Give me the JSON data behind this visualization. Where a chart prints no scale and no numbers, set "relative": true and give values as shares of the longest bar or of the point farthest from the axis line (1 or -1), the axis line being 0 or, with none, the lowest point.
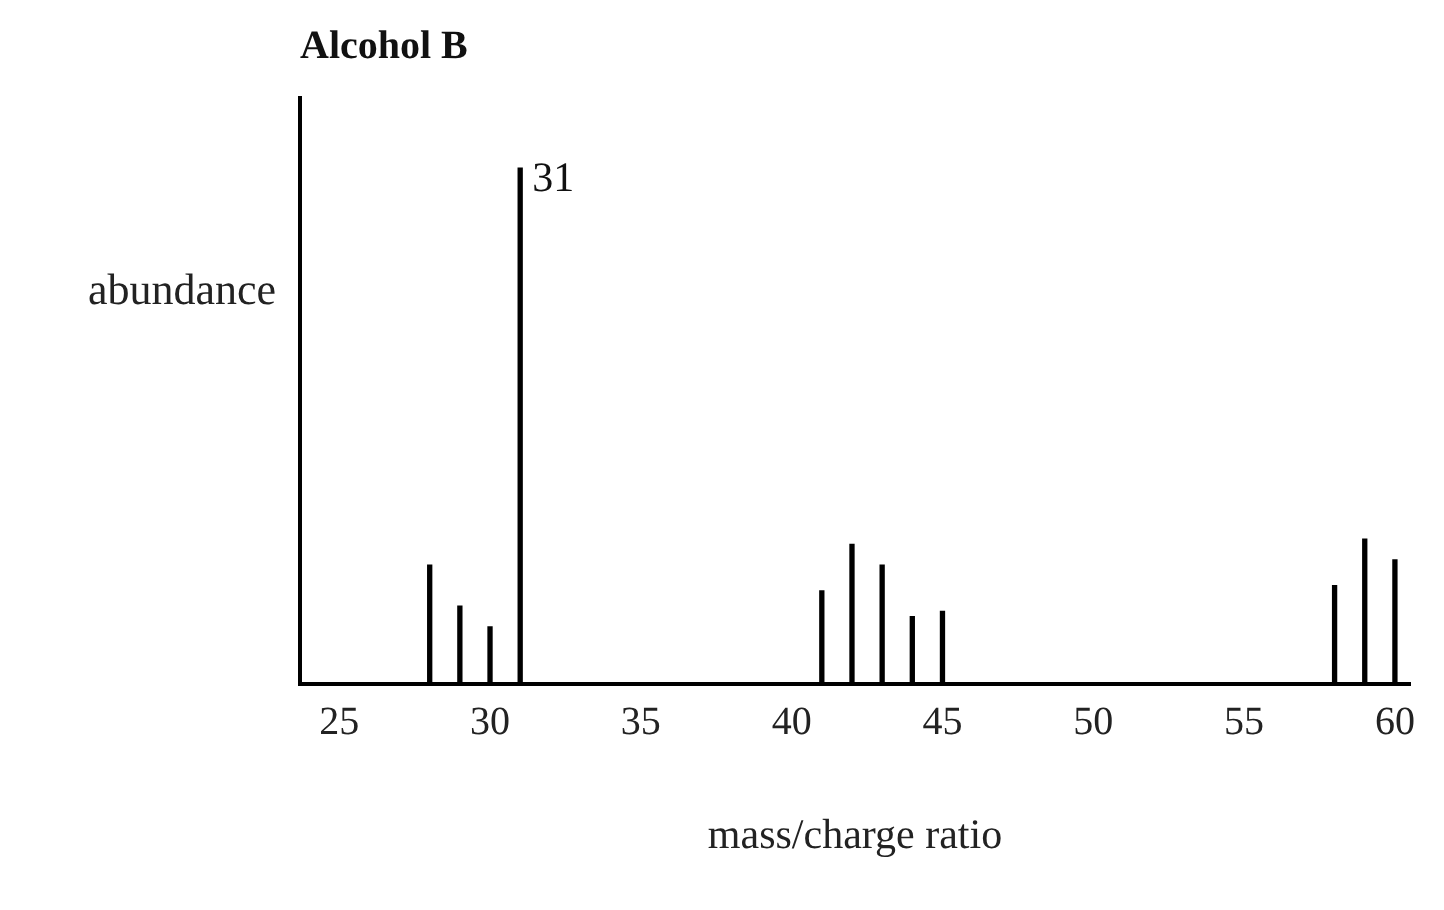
{
  "chart_data": {
    "type": "bar",
    "title": "Alcohol B",
    "xlabel": "mass/charge ratio",
    "ylabel": "abundance",
    "relative": true,
    "x": [
      28,
      29,
      30,
      31,
      41,
      42,
      43,
      44,
      45,
      58,
      59,
      60
    ],
    "values": [
      0.23,
      0.15,
      0.11,
      1,
      0.18,
      0.27,
      0.23,
      0.13,
      0.14,
      0.19,
      0.28,
      0.24
    ],
    "color": "#000000",
    "xlim": [
      23.7,
      60.5
    ],
    "xticks": [
      25,
      30,
      35,
      40,
      45,
      50,
      55,
      60
    ],
    "annotations": [
      {
        "text": "31",
        "x": 31,
        "y": 1
      }
    ]
  }
}
